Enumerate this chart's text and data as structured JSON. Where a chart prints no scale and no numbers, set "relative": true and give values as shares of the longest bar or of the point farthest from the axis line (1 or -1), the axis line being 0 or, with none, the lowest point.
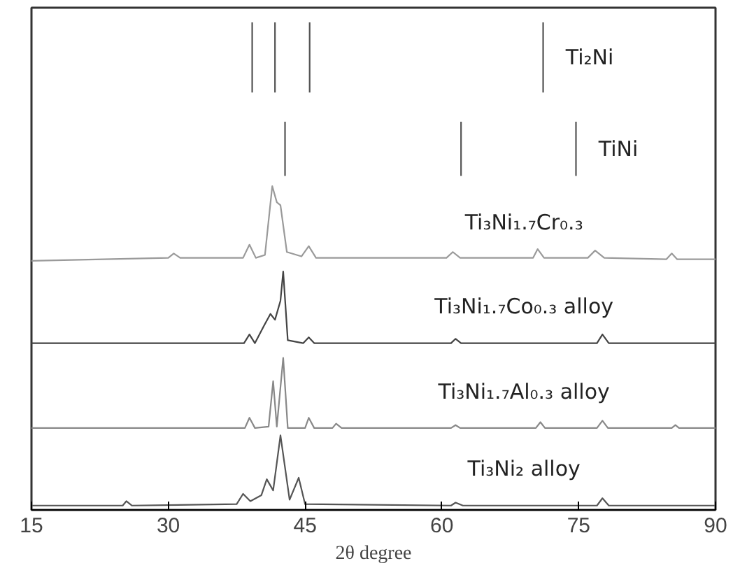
{
  "chart_data": {
    "type": "line",
    "relative": true,
    "xlabel": "2θ degree",
    "xlim": [
      15,
      90
    ],
    "xticks": [
      15,
      30,
      45,
      60,
      75,
      90
    ],
    "grid": false,
    "legend": false,
    "series": [
      {
        "name": "Ti₂Ni",
        "color": "#555555",
        "x": [
          39.2,
          39.2,
          40.5,
          41.7,
          41.7,
          43.6,
          45.5,
          45.5,
          58.3,
          71.1,
          71.1
        ],
        "values": [
          0.856,
          1,
          null,
          0.856,
          1,
          null,
          0.856,
          1,
          null,
          0.856,
          1
        ]
      },
      {
        "name": "TiNi",
        "color": "#555555",
        "x": [
          42.8,
          42.8,
          52.4,
          62.1,
          62.1,
          68.4,
          74.7,
          74.7
        ],
        "values": [
          0.685,
          0.796,
          null,
          0.685,
          0.796,
          null,
          0.685,
          0.796
        ]
      },
      {
        "name": "Ti₃Ni₁.₇Cr₀.₃",
        "color": "#9a9a9a",
        "x": [
          15,
          30,
          30.6,
          31.3,
          38.2,
          38.9,
          39.6,
          40.6,
          41.4,
          41.9,
          42.3,
          43.0,
          44.6,
          45.4,
          46.2,
          60.5,
          61.2,
          62,
          70,
          70.5,
          71.2,
          76,
          76.8,
          77.8,
          84.6,
          85.2,
          85.8,
          90
        ],
        "values": [
          0.511,
          0.517,
          0.526,
          0.517,
          0.517,
          0.544,
          0.517,
          0.523,
          0.664,
          0.631,
          0.625,
          0.529,
          0.52,
          0.541,
          0.517,
          0.517,
          0.529,
          0.517,
          0.517,
          0.535,
          0.517,
          0.517,
          0.532,
          0.517,
          0.514,
          0.526,
          0.514,
          0.514
        ]
      },
      {
        "name": "Ti₃Ni₁.₇Co₀.₃ alloy",
        "color": "#444444",
        "x": [
          15,
          38.3,
          38.9,
          39.5,
          40.5,
          41.2,
          41.7,
          42.3,
          42.6,
          43.1,
          44.8,
          45.4,
          46,
          61,
          61.5,
          62.1,
          77,
          77.6,
          78.3,
          90
        ],
        "values": [
          0.342,
          0.342,
          0.36,
          0.342,
          0.378,
          0.402,
          0.39,
          0.429,
          0.489,
          0.348,
          0.342,
          0.354,
          0.342,
          0.342,
          0.351,
          0.342,
          0.342,
          0.36,
          0.342,
          0.342
        ]
      },
      {
        "name": "Ti₃Ni₁.₇Al₀.₃ alloy",
        "color": "#888888",
        "x": [
          15,
          38.4,
          38.9,
          39.5,
          41,
          41.5,
          41.9,
          42.6,
          43.1,
          45,
          45.4,
          46,
          48,
          48.4,
          49,
          61,
          61.5,
          62,
          70.3,
          70.8,
          71.3,
          77,
          77.6,
          78.2,
          85.2,
          85.6,
          86,
          90
        ],
        "values": [
          0.168,
          0.168,
          0.189,
          0.168,
          0.171,
          0.264,
          0.171,
          0.312,
          0.168,
          0.168,
          0.189,
          0.168,
          0.168,
          0.177,
          0.168,
          0.168,
          0.174,
          0.168,
          0.168,
          0.18,
          0.168,
          0.168,
          0.183,
          0.168,
          0.168,
          0.174,
          0.168,
          0.168
        ]
      },
      {
        "name": "Ti₃Ni₂ alloy",
        "color": "#555555",
        "x": [
          15,
          25,
          25.4,
          26,
          37.5,
          38.2,
          39,
          40.2,
          40.8,
          41.5,
          42.3,
          43.3,
          44.3,
          45,
          61,
          61.5,
          62.3,
          77,
          77.6,
          78.3,
          90
        ],
        "values": [
          0.009,
          0.009,
          0.018,
          0.009,
          0.012,
          0.033,
          0.018,
          0.03,
          0.063,
          0.04,
          0.153,
          0.021,
          0.066,
          0.012,
          0.009,
          0.015,
          0.009,
          0.009,
          0.024,
          0.009,
          0.009
        ]
      }
    ]
  }
}
